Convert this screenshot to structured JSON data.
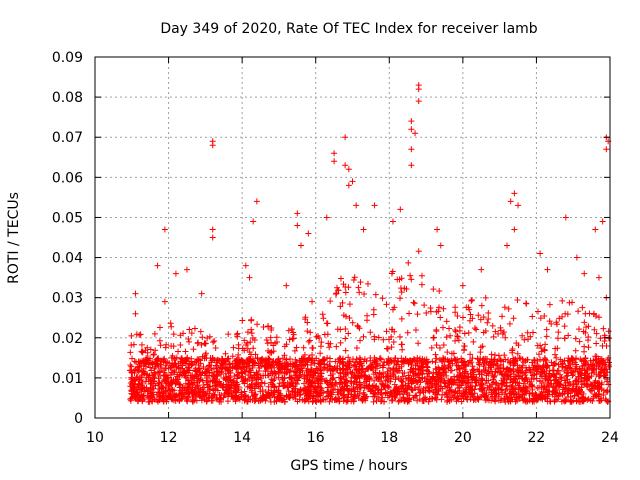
{
  "chart_data": {
    "type": "scatter",
    "title": "Day 349 of 2020, Rate Of TEC Index for receiver lamb",
    "xlabel": "GPS time / hours",
    "ylabel": "ROTI / TECUs",
    "xlim": [
      10,
      24
    ],
    "ylim": [
      0,
      0.09
    ],
    "x_ticks": [
      "10",
      "12",
      "14",
      "16",
      "18",
      "20",
      "22",
      "24"
    ],
    "y_ticks": [
      "0",
      "0.01",
      "0.02",
      "0.03",
      "0.04",
      "0.05",
      "0.06",
      "0.07",
      "0.08",
      "0.09"
    ],
    "grid": true,
    "marker": "+",
    "color": "#ff0000",
    "outliers": [
      {
        "x": 11.1,
        "y": 0.031
      },
      {
        "x": 11.1,
        "y": 0.026
      },
      {
        "x": 11.7,
        "y": 0.038
      },
      {
        "x": 11.9,
        "y": 0.029
      },
      {
        "x": 11.9,
        "y": 0.047
      },
      {
        "x": 12.2,
        "y": 0.036
      },
      {
        "x": 12.5,
        "y": 0.037
      },
      {
        "x": 12.9,
        "y": 0.031
      },
      {
        "x": 13.2,
        "y": 0.069
      },
      {
        "x": 13.2,
        "y": 0.068
      },
      {
        "x": 13.2,
        "y": 0.047
      },
      {
        "x": 13.2,
        "y": 0.045
      },
      {
        "x": 14.1,
        "y": 0.038
      },
      {
        "x": 14.2,
        "y": 0.035
      },
      {
        "x": 14.4,
        "y": 0.054
      },
      {
        "x": 14.3,
        "y": 0.049
      },
      {
        "x": 15.2,
        "y": 0.033
      },
      {
        "x": 15.5,
        "y": 0.051
      },
      {
        "x": 15.5,
        "y": 0.048
      },
      {
        "x": 15.6,
        "y": 0.043
      },
      {
        "x": 15.8,
        "y": 0.046
      },
      {
        "x": 15.9,
        "y": 0.029
      },
      {
        "x": 16.3,
        "y": 0.05
      },
      {
        "x": 16.5,
        "y": 0.066
      },
      {
        "x": 16.5,
        "y": 0.064
      },
      {
        "x": 16.8,
        "y": 0.07
      },
      {
        "x": 16.8,
        "y": 0.063
      },
      {
        "x": 16.9,
        "y": 0.062
      },
      {
        "x": 16.9,
        "y": 0.058
      },
      {
        "x": 17.0,
        "y": 0.059
      },
      {
        "x": 17.1,
        "y": 0.053
      },
      {
        "x": 17.3,
        "y": 0.047
      },
      {
        "x": 17.6,
        "y": 0.053
      },
      {
        "x": 18.1,
        "y": 0.049
      },
      {
        "x": 18.3,
        "y": 0.052
      },
      {
        "x": 18.6,
        "y": 0.074
      },
      {
        "x": 18.6,
        "y": 0.072
      },
      {
        "x": 18.7,
        "y": 0.071
      },
      {
        "x": 18.6,
        "y": 0.067
      },
      {
        "x": 18.6,
        "y": 0.063
      },
      {
        "x": 18.8,
        "y": 0.083
      },
      {
        "x": 18.8,
        "y": 0.082
      },
      {
        "x": 18.8,
        "y": 0.079
      },
      {
        "x": 19.3,
        "y": 0.047
      },
      {
        "x": 19.4,
        "y": 0.043
      },
      {
        "x": 20.0,
        "y": 0.033
      },
      {
        "x": 20.5,
        "y": 0.037
      },
      {
        "x": 21.2,
        "y": 0.043
      },
      {
        "x": 21.3,
        "y": 0.054
      },
      {
        "x": 21.4,
        "y": 0.056
      },
      {
        "x": 21.5,
        "y": 0.053
      },
      {
        "x": 21.4,
        "y": 0.047
      },
      {
        "x": 22.1,
        "y": 0.041
      },
      {
        "x": 22.3,
        "y": 0.037
      },
      {
        "x": 22.8,
        "y": 0.05
      },
      {
        "x": 23.1,
        "y": 0.04
      },
      {
        "x": 23.3,
        "y": 0.036
      },
      {
        "x": 23.6,
        "y": 0.047
      },
      {
        "x": 23.7,
        "y": 0.035
      },
      {
        "x": 23.9,
        "y": 0.07
      },
      {
        "x": 23.95,
        "y": 0.069
      },
      {
        "x": 23.9,
        "y": 0.067
      },
      {
        "x": 23.8,
        "y": 0.049
      },
      {
        "x": 23.9,
        "y": 0.03
      }
    ],
    "envelope": [
      [
        11.0,
        0.022
      ],
      [
        11.5,
        0.021
      ],
      [
        12.0,
        0.024
      ],
      [
        12.5,
        0.023
      ],
      [
        13.0,
        0.022
      ],
      [
        13.5,
        0.02
      ],
      [
        14.0,
        0.025
      ],
      [
        14.5,
        0.024
      ],
      [
        15.0,
        0.022
      ],
      [
        15.5,
        0.026
      ],
      [
        16.0,
        0.024
      ],
      [
        16.5,
        0.032
      ],
      [
        16.8,
        0.039
      ],
      [
        17.0,
        0.037
      ],
      [
        17.5,
        0.033
      ],
      [
        18.0,
        0.036
      ],
      [
        18.5,
        0.04
      ],
      [
        18.8,
        0.042
      ],
      [
        19.0,
        0.035
      ],
      [
        19.5,
        0.031
      ],
      [
        20.0,
        0.028
      ],
      [
        20.5,
        0.031
      ],
      [
        21.0,
        0.027
      ],
      [
        21.5,
        0.03
      ],
      [
        22.0,
        0.027
      ],
      [
        22.5,
        0.03
      ],
      [
        23.0,
        0.03
      ],
      [
        23.5,
        0.027
      ],
      [
        24.0,
        0.025
      ]
    ]
  }
}
